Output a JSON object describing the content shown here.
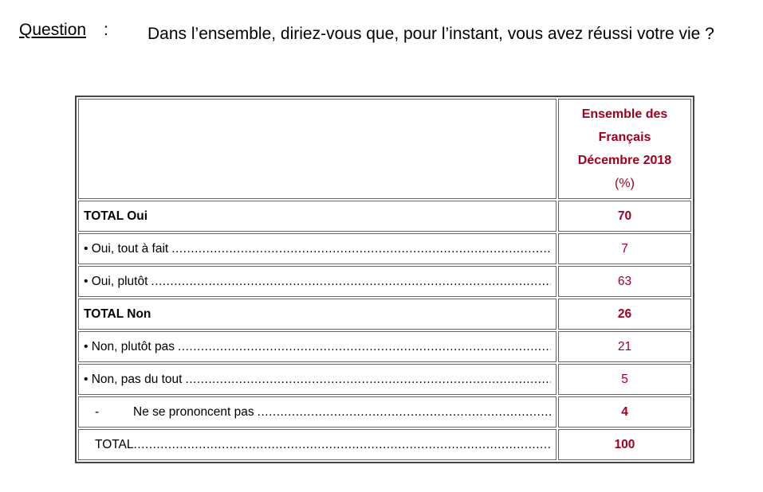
{
  "question": {
    "label": "Question",
    "colon": ":",
    "text": "Dans l’ensemble, diriez-vous que, pour l’instant, vous avez réussi votre vie ?"
  },
  "table": {
    "header": {
      "line1": "Ensemble des",
      "line2": "Français",
      "line3": "Décembre 2018",
      "unit": "(%)"
    },
    "rows": [
      {
        "label": "TOTAL Oui",
        "value": "70",
        "type": "total"
      },
      {
        "label": "• Oui, tout à fait",
        "value": "7",
        "type": "item"
      },
      {
        "label": "• Oui, plutôt",
        "value": "63",
        "type": "item"
      },
      {
        "label": "TOTAL Non",
        "value": "26",
        "type": "total"
      },
      {
        "label": "• Non, plutôt pas",
        "value": "21",
        "type": "item"
      },
      {
        "label": "• Non, pas du tout",
        "value": "5",
        "type": "item"
      },
      {
        "dash": "-",
        "label": "Ne se prononcent pas",
        "value": "4",
        "type": "nsp"
      },
      {
        "label": "TOTAL",
        "value": "100",
        "type": "grand"
      }
    ]
  },
  "colors": {
    "accent": "#a0001e"
  }
}
